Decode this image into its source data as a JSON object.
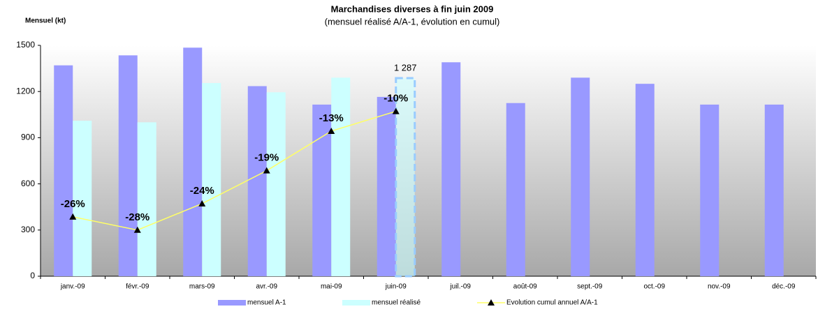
{
  "chart_data": {
    "type": "bar",
    "title": "Marchandises diverses à fin juin 2009",
    "subtitle": "(mensuel réalisé A/A-1, évolution en cumul)",
    "y_label": "Mensuel (kt)",
    "categories": [
      "janv.-09",
      "févr.-09",
      "mars-09",
      "avr.-09",
      "mai-09",
      "juin-09",
      "juil.-09",
      "août-09",
      "sept.-09",
      "oct.-09",
      "nov.-09",
      "déc.-09"
    ],
    "series": [
      {
        "name": "mensuel A-1",
        "color": "#9999ff",
        "type": "bar",
        "values": [
          1370,
          1435,
          1485,
          1235,
          1115,
          1165,
          1390,
          1125,
          1290,
          1250,
          1115,
          1115
        ]
      },
      {
        "name": "mensuel réalisé",
        "color": "#ccffff",
        "type": "bar",
        "values": [
          1010,
          1000,
          1255,
          1195,
          1290,
          1287,
          null,
          null,
          null,
          null,
          null,
          null
        ],
        "value_labels": [
          null,
          null,
          null,
          null,
          null,
          "1 287",
          null,
          null,
          null,
          null,
          null,
          null
        ]
      },
      {
        "name": "Evolution cumul annuel A/A-1",
        "color": "#ffff66",
        "type": "line",
        "axis": "y2",
        "values": [
          -26,
          -28,
          -24,
          -19,
          -13,
          -10,
          null,
          null,
          null,
          null,
          null,
          null
        ],
        "value_labels": [
          "-26%",
          "-28%",
          "-24%",
          "-19%",
          "-13%",
          "-10%",
          null,
          null,
          null,
          null,
          null,
          null
        ]
      }
    ],
    "ylim": [
      0,
      1500
    ],
    "yticks": [
      0,
      300,
      600,
      900,
      1200,
      1500
    ],
    "y2lim": [
      -35,
      0
    ],
    "grid": false,
    "legend": "bottom"
  }
}
